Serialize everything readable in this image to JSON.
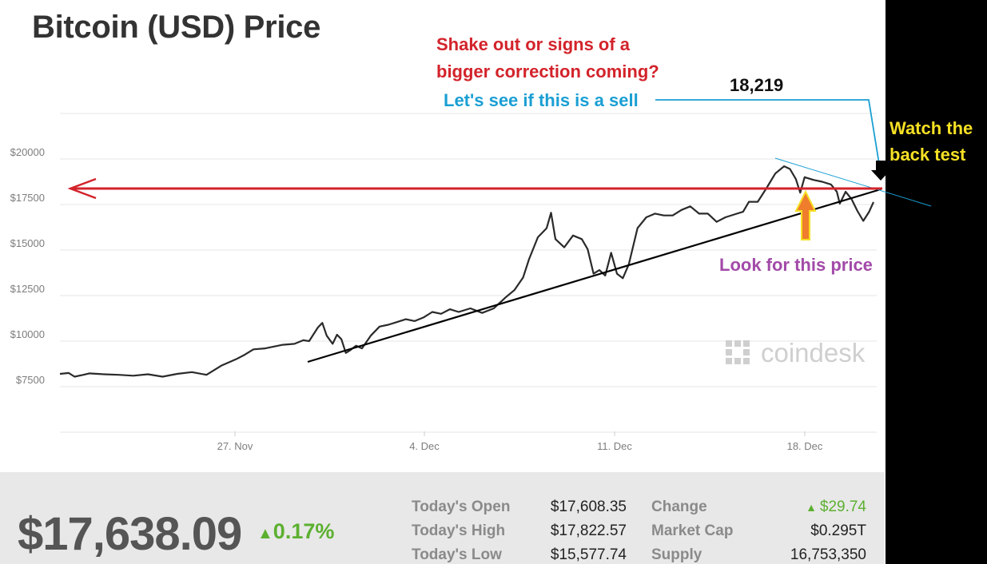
{
  "title": "Bitcoin (USD) Price",
  "chart_data": {
    "type": "line",
    "title": "Bitcoin (USD) Price",
    "y_ticks": [
      "$20000",
      "$17500",
      "$15000",
      "$12500",
      "$10000",
      "$7500"
    ],
    "x_ticks": [
      "27. Nov",
      "4. Dec",
      "11. Dec",
      "18. Dec"
    ],
    "ylim": [
      5000,
      22500
    ],
    "grid": "horizontal",
    "series": [
      {
        "values": [
          [
            0.0,
            8200
          ],
          [
            0.3,
            8250
          ],
          [
            0.5,
            8050
          ],
          [
            0.8,
            8150
          ],
          [
            1.0,
            8230
          ],
          [
            1.5,
            8180
          ],
          [
            2.0,
            8150
          ],
          [
            2.5,
            8100
          ],
          [
            3.0,
            8180
          ],
          [
            3.5,
            8050
          ],
          [
            4.0,
            8200
          ],
          [
            4.5,
            8300
          ],
          [
            5.0,
            8150
          ],
          [
            5.5,
            8650
          ],
          [
            6.0,
            9000
          ],
          [
            6.3,
            9250
          ],
          [
            6.6,
            9550
          ],
          [
            7.0,
            9600
          ],
          [
            7.3,
            9700
          ],
          [
            7.6,
            9800
          ],
          [
            8.0,
            9850
          ],
          [
            8.3,
            10050
          ],
          [
            8.5,
            10000
          ],
          [
            8.8,
            10750
          ],
          [
            8.95,
            11000
          ],
          [
            9.1,
            10300
          ],
          [
            9.3,
            9850
          ],
          [
            9.45,
            10350
          ],
          [
            9.6,
            10100
          ],
          [
            9.75,
            9350
          ],
          [
            9.9,
            9500
          ],
          [
            10.1,
            9750
          ],
          [
            10.3,
            9600
          ],
          [
            10.6,
            10300
          ],
          [
            10.9,
            10800
          ],
          [
            11.2,
            10900
          ],
          [
            11.5,
            11050
          ],
          [
            11.8,
            11200
          ],
          [
            12.1,
            11100
          ],
          [
            12.4,
            11300
          ],
          [
            12.7,
            11600
          ],
          [
            13.0,
            11500
          ],
          [
            13.3,
            11750
          ],
          [
            13.6,
            11600
          ],
          [
            14.0,
            11800
          ],
          [
            14.4,
            11550
          ],
          [
            14.8,
            11800
          ],
          [
            15.2,
            12400
          ],
          [
            15.5,
            12800
          ],
          [
            15.8,
            13500
          ],
          [
            16.0,
            14500
          ],
          [
            16.3,
            15700
          ],
          [
            16.6,
            16200
          ],
          [
            16.75,
            17050
          ],
          [
            16.9,
            15600
          ],
          [
            17.2,
            15150
          ],
          [
            17.5,
            15800
          ],
          [
            17.8,
            15600
          ],
          [
            18.0,
            15050
          ],
          [
            18.2,
            13700
          ],
          [
            18.4,
            13900
          ],
          [
            18.6,
            13600
          ],
          [
            18.8,
            14850
          ],
          [
            19.0,
            13700
          ],
          [
            19.2,
            13450
          ],
          [
            19.4,
            14200
          ],
          [
            19.7,
            16200
          ],
          [
            20.0,
            16800
          ],
          [
            20.3,
            17000
          ],
          [
            20.6,
            16900
          ],
          [
            20.9,
            16900
          ],
          [
            21.2,
            17200
          ],
          [
            21.5,
            17400
          ],
          [
            21.8,
            17000
          ],
          [
            22.1,
            17000
          ],
          [
            22.4,
            16550
          ],
          [
            22.7,
            16800
          ],
          [
            23.0,
            16950
          ],
          [
            23.3,
            17100
          ],
          [
            23.5,
            17650
          ],
          [
            23.8,
            17650
          ],
          [
            24.1,
            18400
          ],
          [
            24.4,
            19200
          ],
          [
            24.7,
            19600
          ],
          [
            24.9,
            19450
          ],
          [
            25.1,
            18900
          ],
          [
            25.25,
            18150
          ],
          [
            25.4,
            19000
          ],
          [
            25.7,
            18850
          ],
          [
            26.0,
            18750
          ],
          [
            26.3,
            18600
          ],
          [
            26.5,
            18200
          ],
          [
            26.6,
            17550
          ],
          [
            26.8,
            18200
          ],
          [
            27.0,
            17800
          ],
          [
            27.2,
            17150
          ],
          [
            27.4,
            16600
          ],
          [
            27.6,
            17100
          ],
          [
            27.75,
            17638
          ]
        ]
      }
    ]
  },
  "annotations": {
    "question_line1": "Shake out or signs of a",
    "question_line2": "bigger correction coming?",
    "price_level": "18,219",
    "sell_note": "Let's see if this is a sell",
    "backtest_line1": "Watch the",
    "backtest_line2": "back test",
    "look_note": "Look for this price",
    "watermark": "coindesk"
  },
  "colors": {
    "red_annotation": "#d3232b",
    "blue_annotation": "#1a9fd3",
    "yellow_annotation": "#f5e024",
    "purple_annotation": "#a24aa8",
    "price_line": "#2a2a2a",
    "up_green": "#5cb030"
  },
  "stats": {
    "price": "$17,638.09",
    "change_pct": "0.17%",
    "rows": [
      {
        "label": "Today's Open",
        "value": "$17,608.35",
        "label2": "Change",
        "value2": "$29.74"
      },
      {
        "label": "Today's High",
        "value": "$17,822.57",
        "label2": "Market Cap",
        "value2": "$0.295T"
      },
      {
        "label": "Today's Low",
        "value": "$15,577.74",
        "label2": "Supply",
        "value2": "16,753,350"
      }
    ]
  }
}
